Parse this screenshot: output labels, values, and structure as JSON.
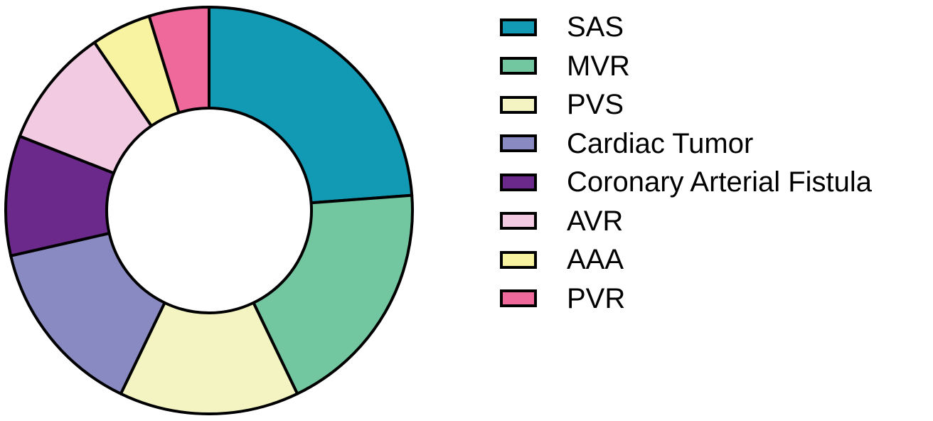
{
  "chart_data": {
    "type": "pie",
    "variant": "donut",
    "title": "",
    "legend_position": "right",
    "slice_order": "clockwise from 12 o'clock",
    "categories": [
      "SAS",
      "MVR",
      "PVS",
      "Cardiac Tumor",
      "Coronary Arterial Fistula",
      "AVR",
      "AAA",
      "PVR"
    ],
    "values": [
      5,
      4,
      3,
      3,
      2,
      2,
      1,
      1
    ],
    "colors": [
      "#1299b3",
      "#72c6a0",
      "#f4f4c2",
      "#8a8ac2",
      "#6b298c",
      "#f2cae2",
      "#f8f3a0",
      "#ef6a9a"
    ],
    "edge_color": "#000000"
  }
}
